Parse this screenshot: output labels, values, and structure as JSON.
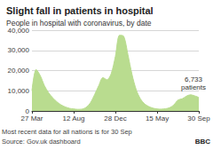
{
  "chart_data": {
    "type": "area",
    "title": "Slight fall in patients in hospital",
    "subtitle": "People in hospital with coronavirus, by date",
    "categories": [
      "27 Mar",
      null,
      null,
      null,
      null,
      null,
      null,
      null,
      null,
      null,
      "12 Aug",
      null,
      null,
      null,
      null,
      null,
      null,
      null,
      null,
      null,
      "28 Dec",
      null,
      null,
      null,
      null,
      null,
      null,
      null,
      null,
      null,
      "15 May",
      null,
      null,
      null,
      null,
      null,
      null,
      null,
      null,
      null,
      "30 Sep"
    ],
    "values": [
      10000,
      20500,
      17500,
      12500,
      9000,
      6500,
      4500,
      3000,
      2000,
      1300,
      1000,
      800,
      900,
      1800,
      4000,
      8000,
      12500,
      16500,
      15500,
      18500,
      27000,
      37500,
      37000,
      28000,
      18000,
      10500,
      6000,
      3500,
      2200,
      1400,
      1000,
      900,
      1100,
      1600,
      3000,
      5400,
      6000,
      7300,
      8000,
      7500,
      6733
    ],
    "color": "#b9dc8f",
    "ylim": [
      0,
      40000
    ],
    "yticks": [
      0,
      {
        "value": 10000,
        "label": "10,000"
      },
      {
        "value": 20000,
        "label": "20,000"
      },
      {
        "value": 30000,
        "label": "30,000"
      },
      {
        "value": 40000,
        "label": "40,000"
      }
    ],
    "grid": true,
    "annotation": "6,733 patients",
    "notes": [
      "Most recent data for all nations is for 30 Sep",
      "Source: Gov.uk dashboard"
    ],
    "logo": "BBC"
  }
}
